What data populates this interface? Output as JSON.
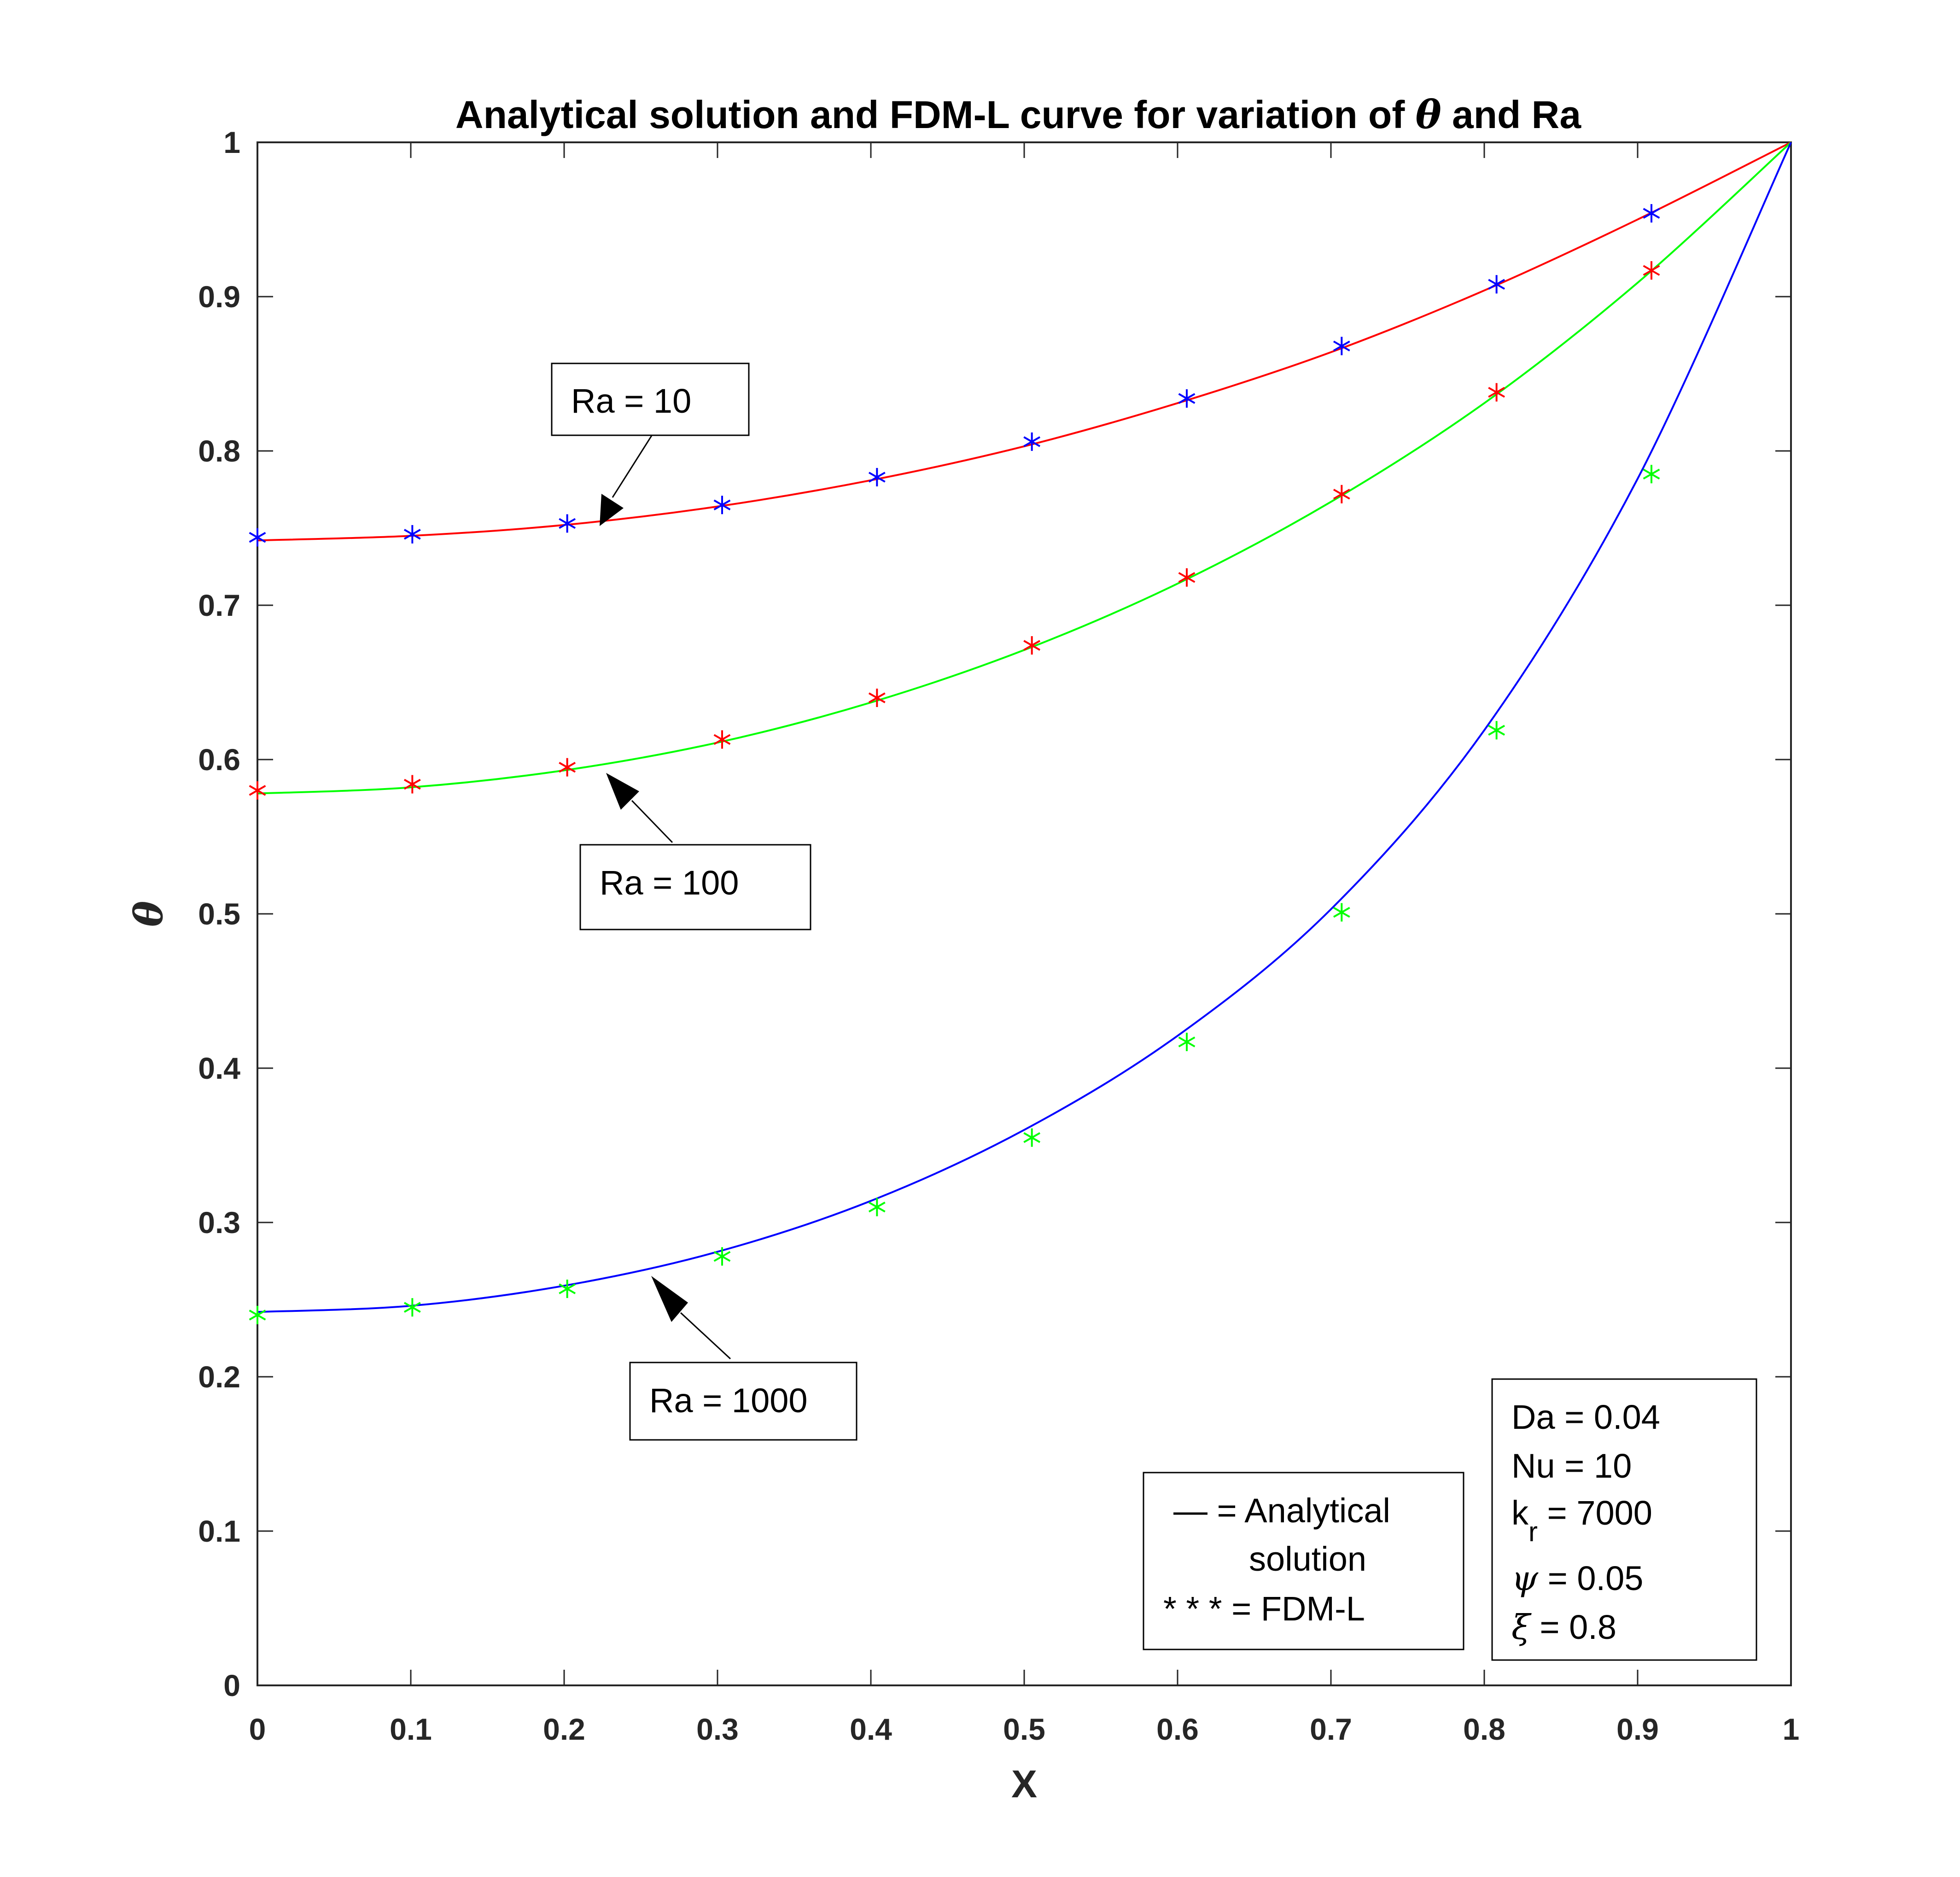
{
  "chart_data": {
    "type": "line",
    "title_prefix": "Analytical solution and FDM-L curve for variation of ",
    "title_symbol": "θ",
    "title_suffix": " and Ra",
    "xlabel": "X",
    "ylabel": "θ",
    "xlim": [
      0,
      1
    ],
    "ylim": [
      0,
      1
    ],
    "xticks": [
      "0",
      "0.1",
      "0.2",
      "0.3",
      "0.4",
      "0.5",
      "0.6",
      "0.7",
      "0.8",
      "0.9",
      "1"
    ],
    "yticks": [
      "0",
      "0.1",
      "0.2",
      "0.3",
      "0.4",
      "0.5",
      "0.6",
      "0.7",
      "0.8",
      "0.9",
      "1"
    ],
    "grid": false,
    "series": [
      {
        "name": "Ra = 10",
        "line_color": "#ff0000",
        "marker_color": "#0000ff",
        "analytical": {
          "x": [
            0,
            0.1,
            0.2,
            0.3,
            0.4,
            0.5,
            0.6,
            0.7,
            0.8,
            0.9,
            1.0
          ],
          "y": [
            0.742,
            0.745,
            0.752,
            0.764,
            0.781,
            0.803,
            0.831,
            0.864,
            0.904,
            0.95,
            1.0
          ]
        },
        "fdm": {
          "x": [
            0,
            0.101,
            0.202,
            0.303,
            0.404,
            0.505,
            0.606,
            0.707,
            0.808,
            0.909
          ],
          "y": [
            0.744,
            0.746,
            0.753,
            0.765,
            0.783,
            0.806,
            0.834,
            0.868,
            0.908,
            0.954
          ]
        }
      },
      {
        "name": "Ra = 100",
        "line_color": "#00ff00",
        "marker_color": "#ff0000",
        "analytical": {
          "x": [
            0,
            0.1,
            0.2,
            0.3,
            0.4,
            0.5,
            0.6,
            0.7,
            0.8,
            0.9,
            1.0
          ],
          "y": [
            0.578,
            0.582,
            0.593,
            0.611,
            0.637,
            0.671,
            0.714,
            0.767,
            0.831,
            0.909,
            1.0
          ]
        },
        "fdm": {
          "x": [
            0,
            0.101,
            0.202,
            0.303,
            0.404,
            0.505,
            0.606,
            0.707,
            0.808,
            0.909
          ],
          "y": [
            0.58,
            0.584,
            0.595,
            0.613,
            0.64,
            0.674,
            0.718,
            0.772,
            0.838,
            0.917
          ]
        }
      },
      {
        "name": "Ra = 1000",
        "line_color": "#0000ff",
        "marker_color": "#00ff00",
        "analytical": {
          "x": [
            0,
            0.1,
            0.2,
            0.3,
            0.4,
            0.5,
            0.6,
            0.7,
            0.8,
            0.9,
            1.0
          ],
          "y": [
            0.242,
            0.246,
            0.259,
            0.281,
            0.314,
            0.36,
            0.421,
            0.503,
            0.619,
            0.782,
            1.0
          ]
        },
        "fdm": {
          "x": [
            0,
            0.101,
            0.202,
            0.303,
            0.404,
            0.505,
            0.606,
            0.707,
            0.808,
            0.909
          ],
          "y": [
            0.24,
            0.245,
            0.257,
            0.278,
            0.31,
            0.355,
            0.417,
            0.501,
            0.619,
            0.785
          ]
        }
      }
    ],
    "annotations": {
      "ra10": "Ra = 10",
      "ra100": "Ra = 100",
      "ra1000": "Ra = 1000"
    },
    "legend_box": {
      "line1": "— = Analytical",
      "line2": "solution",
      "line3": "* * * = FDM-L"
    },
    "params_box": {
      "da": "Da = 0.04",
      "nu": "Nu = 10",
      "kr_base": "k",
      "kr_sub": "r",
      "kr_value": " = 7000",
      "psi_symbol": "ψ",
      "psi_value": " = 0.05",
      "xi_symbol": "ξ",
      "xi_value": " = 0.8"
    }
  }
}
